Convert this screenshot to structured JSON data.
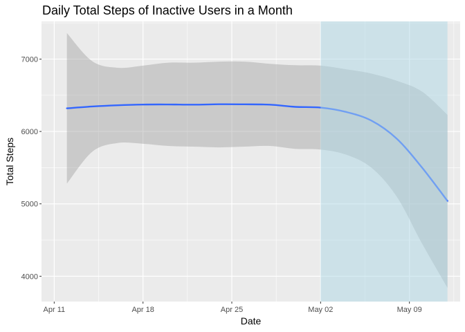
{
  "chart_data": {
    "type": "line",
    "title": "Daily Total Steps of Inactive Users in a Month",
    "xlabel": "Date",
    "ylabel": "Total Steps",
    "x_ticks": [
      "Apr 11",
      "Apr 18",
      "Apr 25",
      "May 02",
      "May 09"
    ],
    "x_tick_values": [
      "2016-04-11",
      "2016-04-18",
      "2016-04-25",
      "2016-05-02",
      "2016-05-09"
    ],
    "xlim": [
      "2016-04-10",
      "2016-05-13"
    ],
    "y_ticks": [
      4000,
      5000,
      6000,
      7000
    ],
    "ylim": [
      3650,
      7520
    ],
    "grid": true,
    "panel_background": "#ebebeb",
    "series": [
      {
        "kind": "smooth",
        "color": "#3366ff",
        "band_color": "#999999",
        "x": [
          "2016-04-12",
          "2016-04-14",
          "2016-04-16",
          "2016-04-18",
          "2016-04-20",
          "2016-04-22",
          "2016-04-24",
          "2016-04-26",
          "2016-04-28",
          "2016-04-30",
          "2016-05-02",
          "2016-05-04",
          "2016-05-06",
          "2016-05-08",
          "2016-05-10",
          "2016-05-12"
        ],
        "y": [
          6320,
          6345,
          6362,
          6372,
          6373,
          6370,
          6376,
          6375,
          6370,
          6340,
          6330,
          6270,
          6150,
          5900,
          5500,
          5040
        ],
        "lower": [
          5280,
          5720,
          5840,
          5830,
          5800,
          5790,
          5780,
          5790,
          5800,
          5760,
          5750,
          5680,
          5500,
          5100,
          4450,
          3840
        ],
        "upper": [
          7360,
          6970,
          6880,
          6910,
          6950,
          6950,
          6965,
          6965,
          6935,
          6915,
          6910,
          6860,
          6800,
          6700,
          6550,
          6230
        ]
      }
    ],
    "highlight": {
      "x_start": "2016-05-02",
      "x_end": "2016-05-12",
      "color": "#add8e6"
    }
  }
}
